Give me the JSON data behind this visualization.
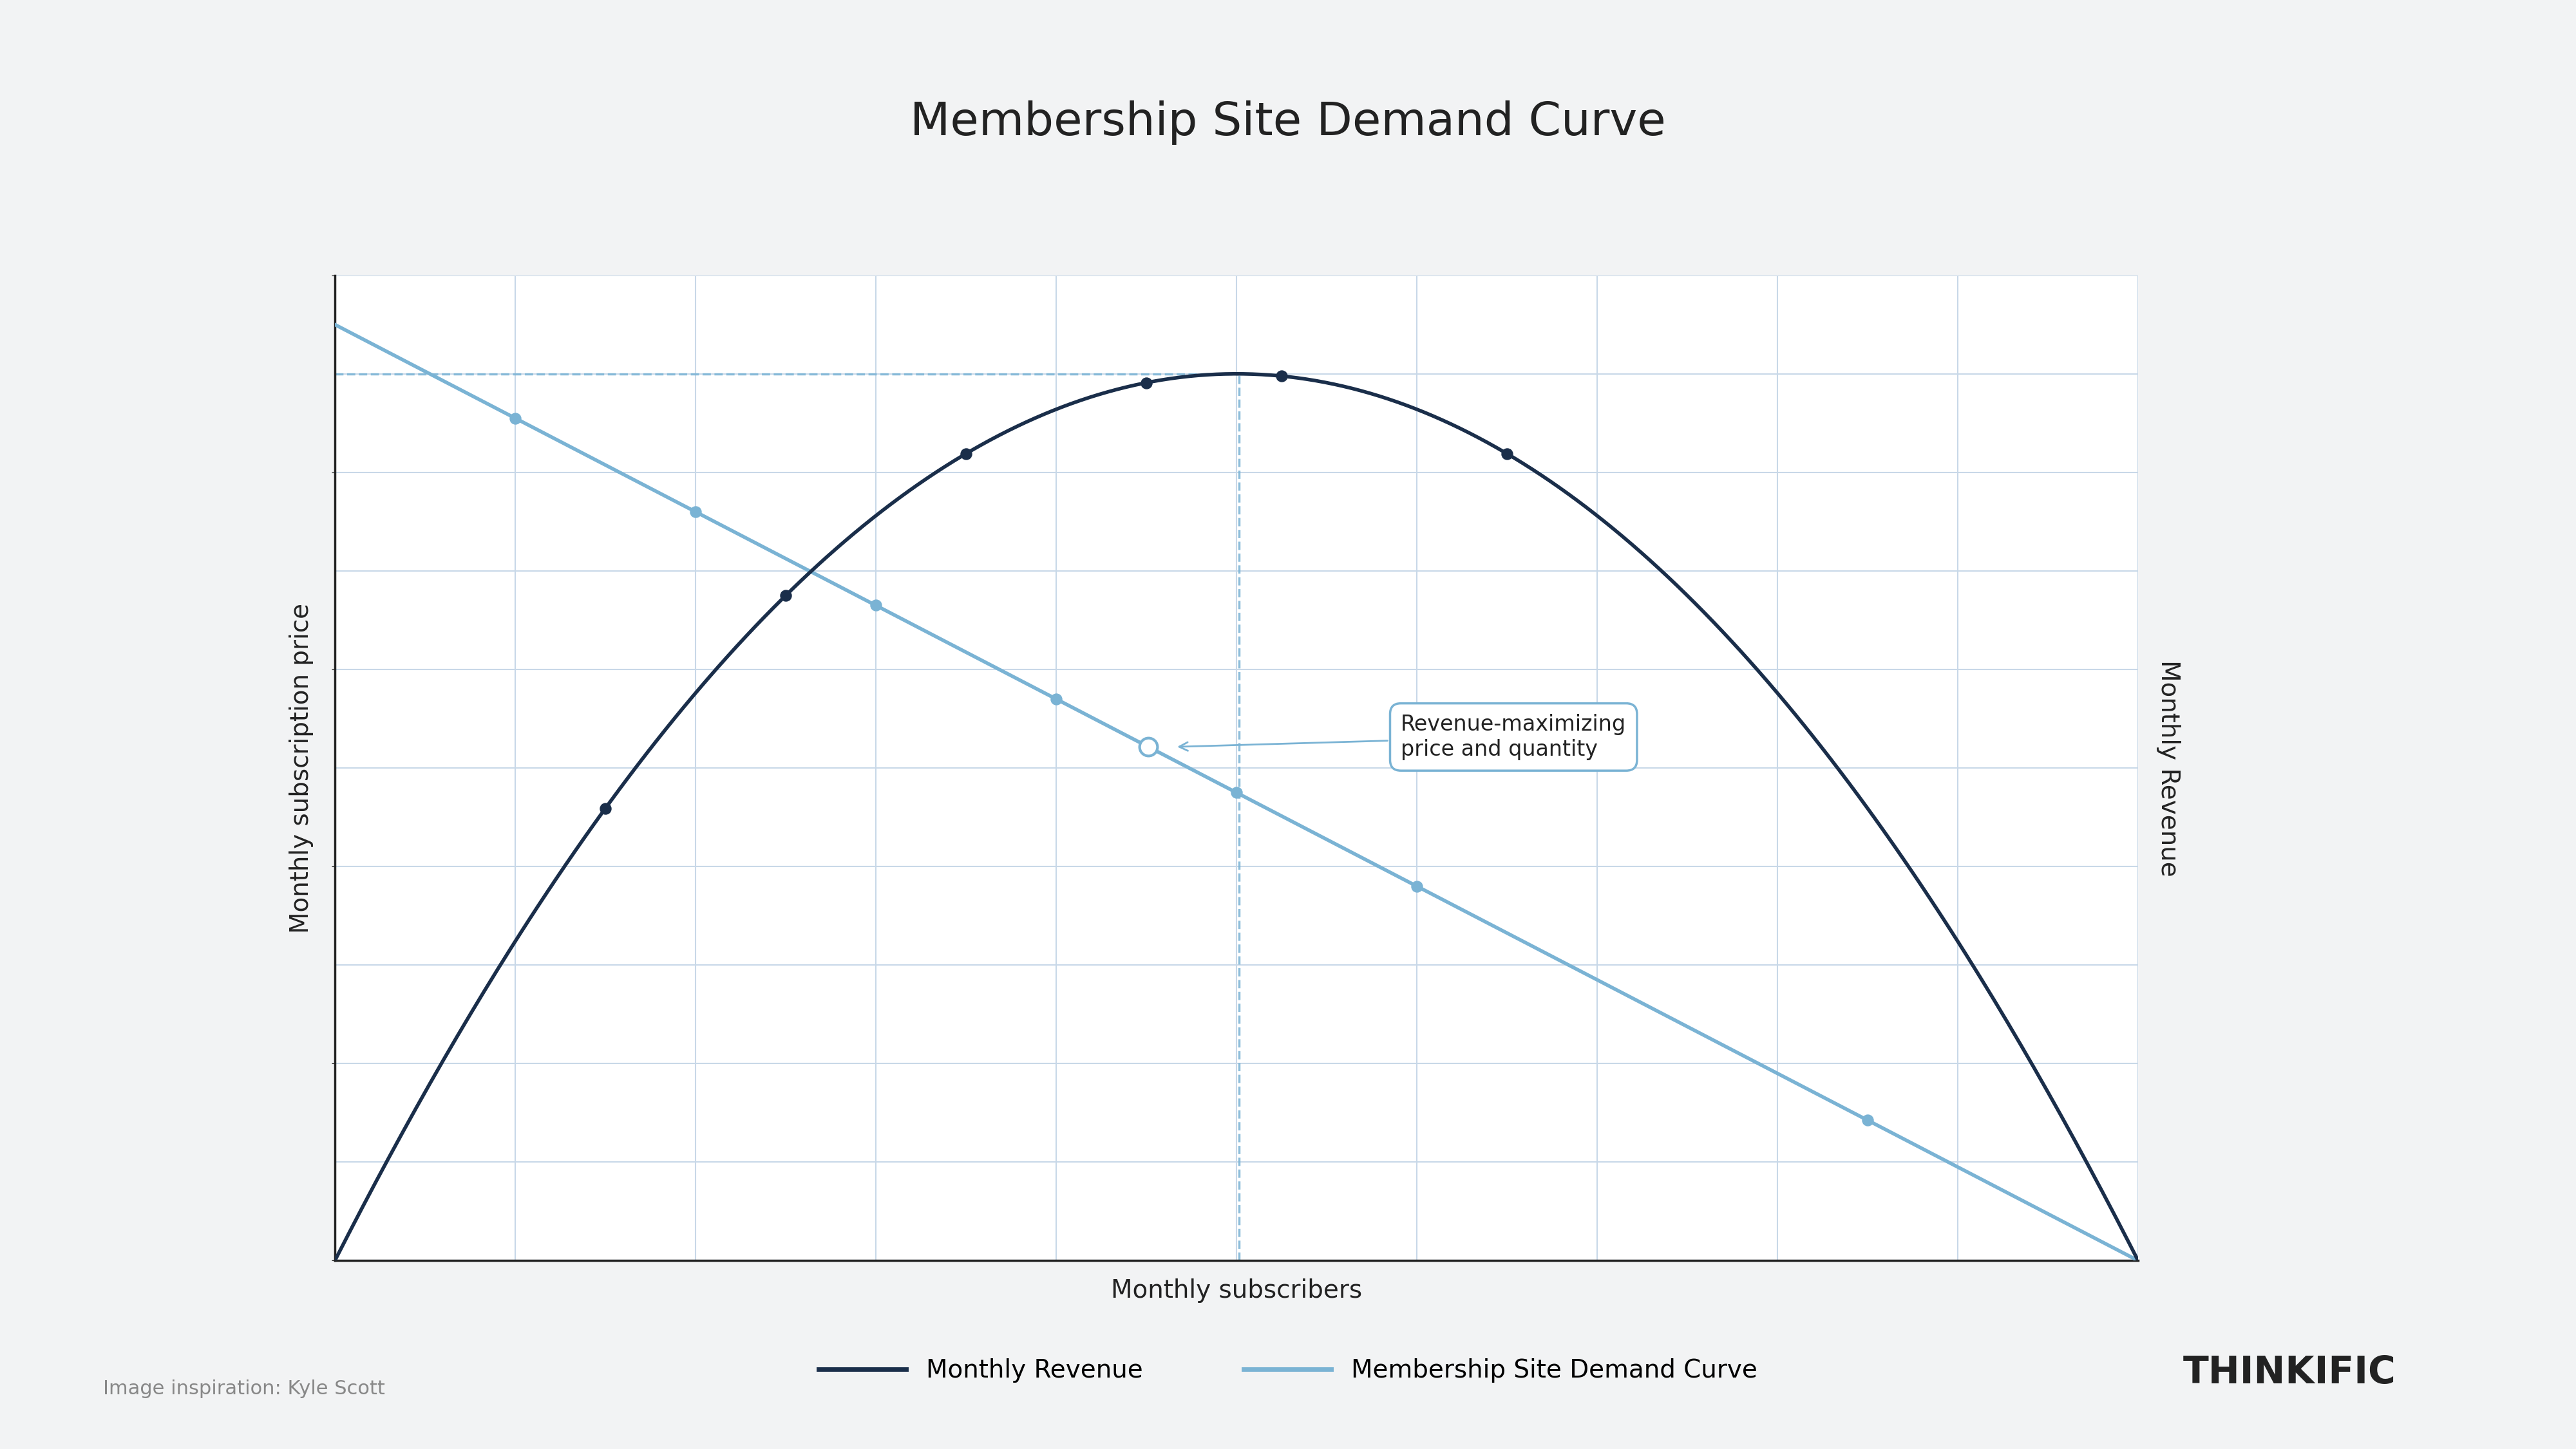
{
  "title": "Membership Site Demand Curve",
  "xlabel": "Monthly subscribers",
  "ylabel_left": "Monthly subscription price",
  "ylabel_right": "Monthly Revenue",
  "background_color": "#f2f3f4",
  "plot_bg_color": "#ffffff",
  "grid_color": "#c8d8e8",
  "axis_color": "#222222",
  "demand_color": "#7ab3d4",
  "revenue_color": "#1a2e4a",
  "annotation_text": "Revenue-maximizing\nprice and quantity",
  "legend_label_revenue": "Monthly Revenue",
  "legend_label_demand": "Membership Site Demand Curve",
  "footnote": "Image inspiration: Kyle Scott",
  "brand": "THINKIFIC",
  "title_fontsize": 52,
  "label_fontsize": 28,
  "legend_fontsize": 28,
  "brand_fontsize": 42,
  "footnote_fontsize": 22,
  "annotation_fontsize": 24,
  "dashed_line_color": "#7ab3d4",
  "intersection_color": "#7ab3d4",
  "dot_color_revenue": "#1a2e4a",
  "dot_color_demand": "#7ab3d4"
}
